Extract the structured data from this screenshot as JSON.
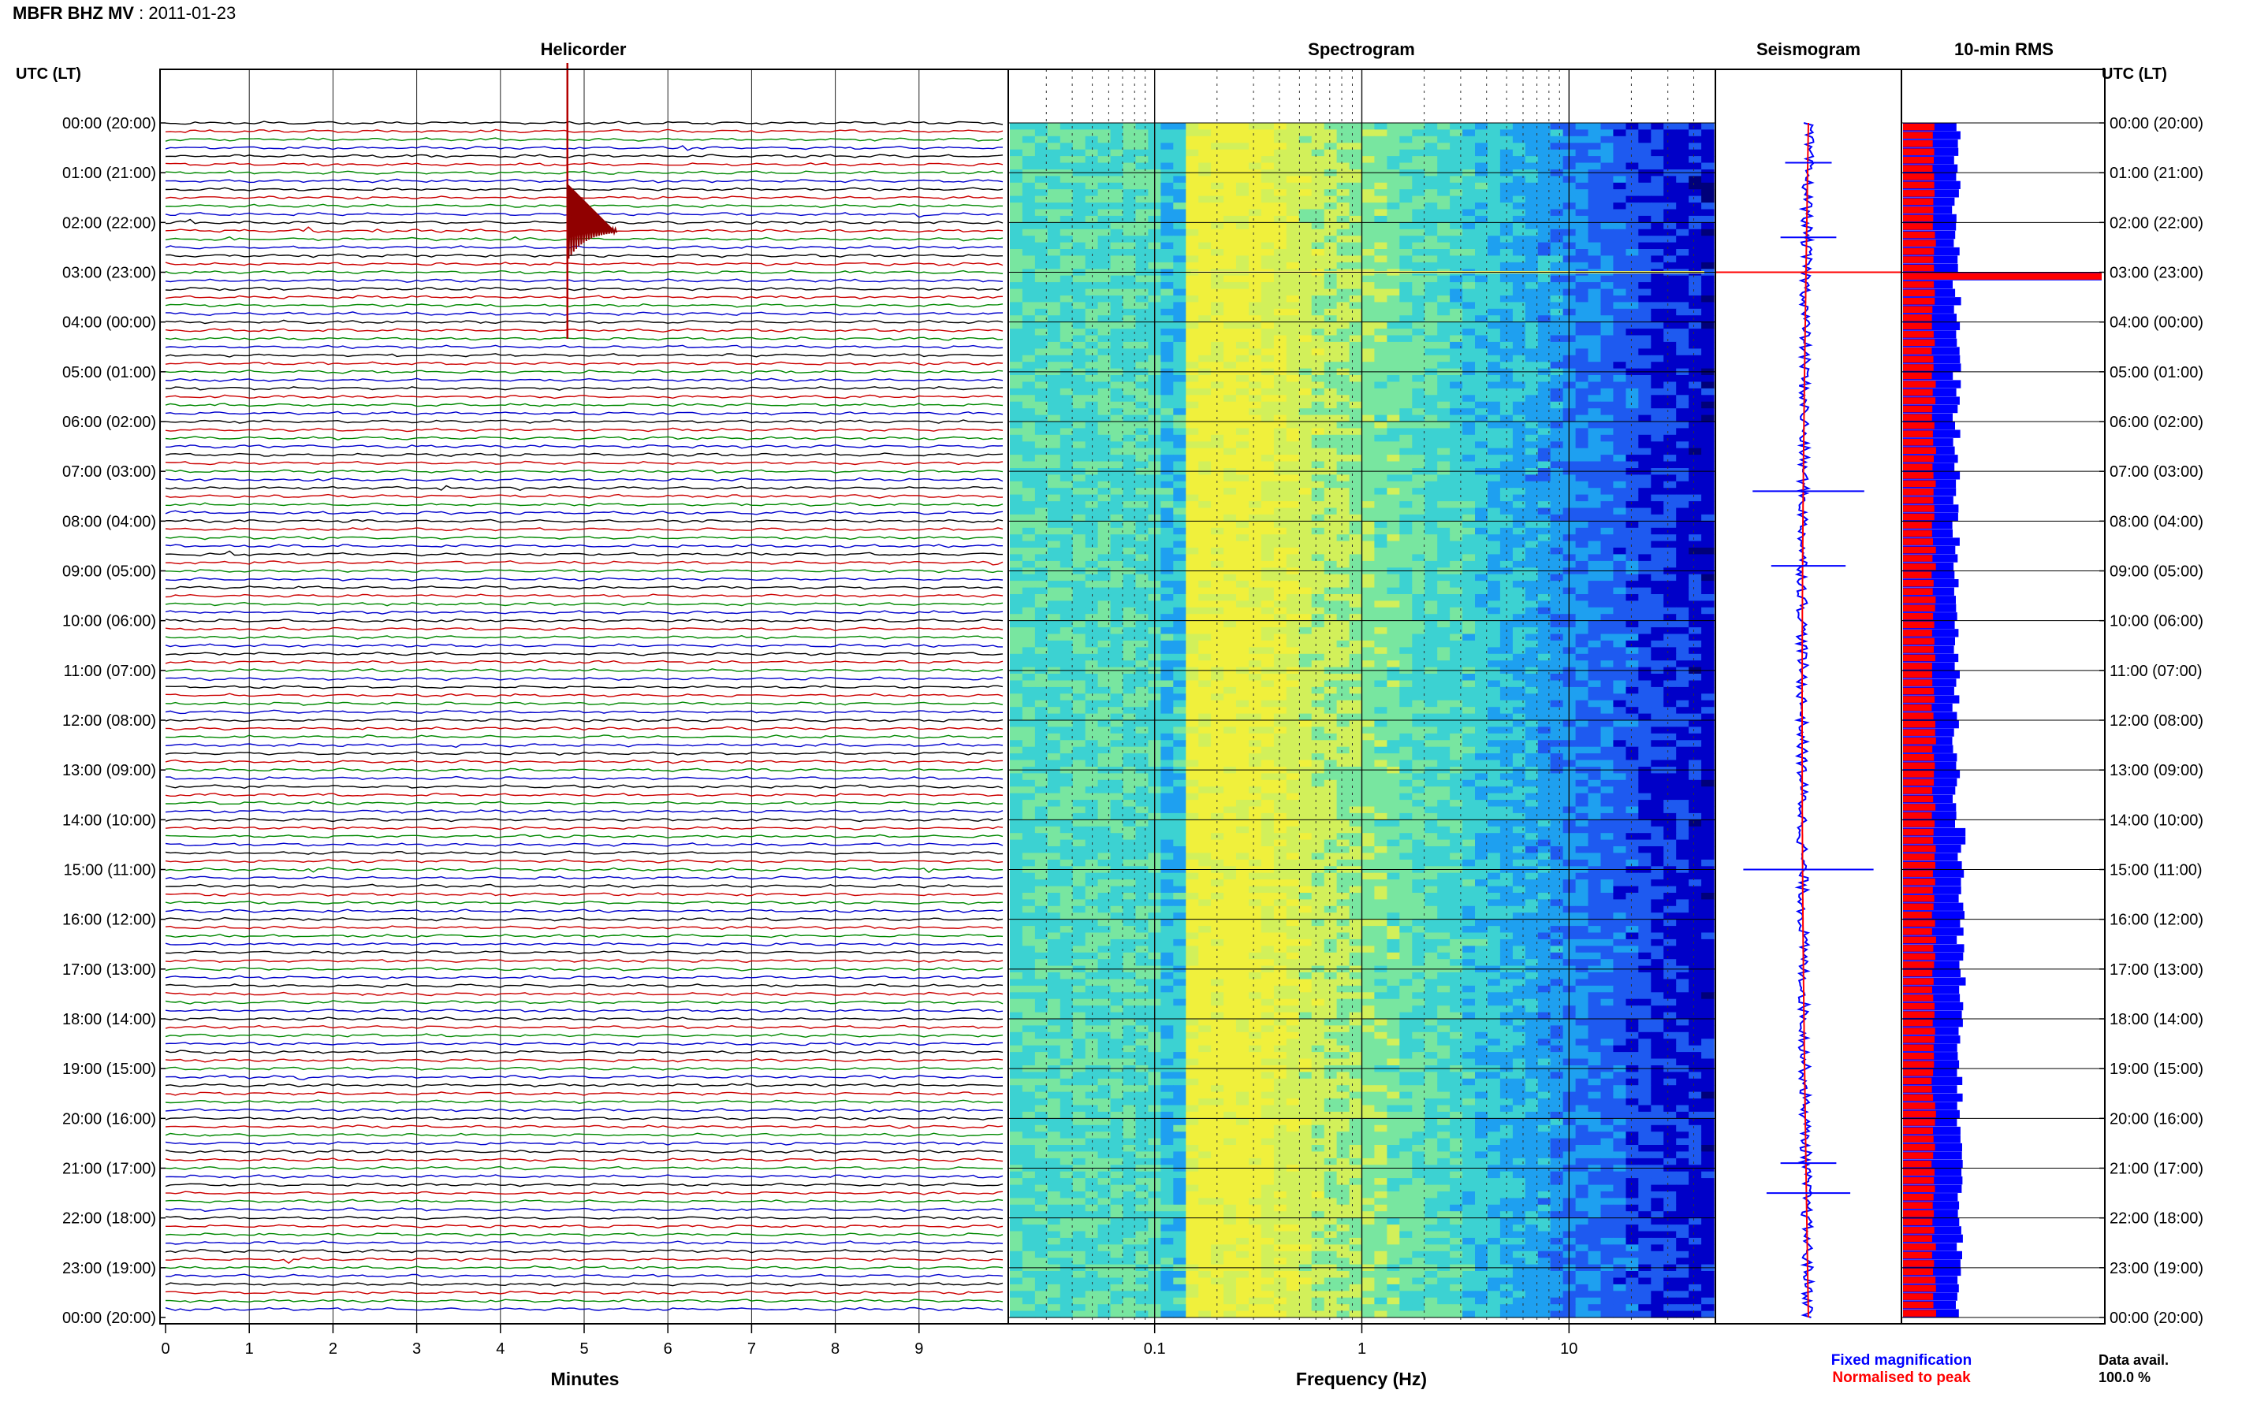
{
  "header": {
    "station": "MBFR BHZ MV",
    "date": "2011-01-23",
    "title_sep": " : "
  },
  "left_axis_title": "UTC (LT)",
  "right_axis_title": "UTC (LT)",
  "colors": {
    "trace_cycle": [
      "#000000",
      "#cc0000",
      "#008800",
      "#0000cc"
    ],
    "spectrogram_scale": [
      "#00007a",
      "#0000c8",
      "#1e5af0",
      "#1ea0f0",
      "#3cd2d2",
      "#78e6a0",
      "#d2f05a",
      "#f0f03c"
    ],
    "fixed_magnification": "#0000ff",
    "normalised_to_peak": "#ff0000"
  },
  "chart_data": [
    {
      "type": "line",
      "title": "Helicorder",
      "xlabel": "Minutes",
      "ylabel": "UTC (LT)",
      "x_ticks": [
        "0",
        "1",
        "2",
        "3",
        "4",
        "5",
        "6",
        "7",
        "8",
        "9"
      ],
      "xlim": [
        0,
        10
      ],
      "rows_per_hour": 6,
      "hours": 24,
      "y_tick_labels": [
        "00:00 (20:00)",
        "01:00 (21:00)",
        "02:00 (22:00)",
        "03:00 (23:00)",
        "04:00 (00:00)",
        "05:00 (01:00)",
        "06:00 (02:00)",
        "07:00 (03:00)",
        "08:00 (04:00)",
        "09:00 (05:00)",
        "10:00 (06:00)",
        "11:00 (07:00)",
        "12:00 (08:00)",
        "13:00 (09:00)",
        "14:00 (10:00)",
        "15:00 (11:00)",
        "16:00 (12:00)",
        "17:00 (13:00)",
        "18:00 (14:00)",
        "19:00 (15:00)",
        "20:00 (16:00)",
        "21:00 (17:00)",
        "22:00 (18:00)",
        "23:00 (19:00)",
        "00:00 (20:00)"
      ],
      "events": [
        {
          "row": 3,
          "minute": 6.2,
          "amp": 0.7
        },
        {
          "row": 12,
          "minute": 0.3,
          "amp": 0.8
        },
        {
          "row": 13,
          "minute": 2.5,
          "amp": 0.8
        },
        {
          "row": 13,
          "minute": 1.7,
          "amp": 0.6
        },
        {
          "row": 14,
          "minute": 0.7,
          "amp": 0.5
        },
        {
          "row": 14,
          "minute": 4.2,
          "amp": 0.4
        },
        {
          "row": 11,
          "minute": 9.0,
          "amp": 0.7
        },
        {
          "row": 10,
          "minute": 7.4,
          "amp": 0.4
        },
        {
          "row": 11,
          "minute": 5.4,
          "amp": 0.4
        },
        {
          "row": 13,
          "minute": 4.8,
          "amp": 6.0,
          "big": true
        },
        {
          "row": 44,
          "minute": 3.3,
          "amp": 0.5
        },
        {
          "row": 44,
          "minute": 4.2,
          "amp": 0.7
        },
        {
          "row": 47,
          "minute": 0.1,
          "amp": 0.8
        },
        {
          "row": 52,
          "minute": 0.8,
          "amp": 0.7
        },
        {
          "row": 53,
          "minute": 9.9,
          "amp": 0.5
        },
        {
          "row": 75,
          "minute": 3.5,
          "amp": 0.4
        },
        {
          "row": 90,
          "minute": 1.8,
          "amp": 0.8
        },
        {
          "row": 90,
          "minute": 9.1,
          "amp": 0.4
        },
        {
          "row": 105,
          "minute": 9.4,
          "amp": 0.6
        },
        {
          "row": 115,
          "minute": 1.6,
          "amp": 0.5
        },
        {
          "row": 117,
          "minute": 3.7,
          "amp": 0.6
        },
        {
          "row": 119,
          "minute": 8.5,
          "amp": 0.8
        },
        {
          "row": 121,
          "minute": 8.8,
          "amp": 0.8
        },
        {
          "row": 137,
          "minute": 1.5,
          "amp": 0.7
        },
        {
          "row": 140,
          "minute": 5.8,
          "amp": 0.5
        }
      ]
    },
    {
      "type": "heatmap",
      "title": "Spectrogram",
      "xlabel": "Frequency (Hz)",
      "x_scale": "log",
      "xlim": [
        0.02,
        50
      ],
      "x_ticks": [
        {
          "value": 0.1,
          "label": "0.1"
        },
        {
          "value": 1,
          "label": "1"
        },
        {
          "value": 10,
          "label": "10"
        }
      ],
      "peak_band_hz": [
        0.15,
        0.35
      ],
      "highlight_row_hour": 3.0
    },
    {
      "type": "line",
      "title": "Seismogram",
      "series": [
        {
          "name": "Fixed magnification",
          "color": "#0000ff"
        },
        {
          "name": "Normalised to peak",
          "color": "#ff0000"
        }
      ],
      "spikes": [
        {
          "hour": 0.8,
          "width": 0.25
        },
        {
          "hour": 2.3,
          "width": 0.3
        },
        {
          "hour": 3.0,
          "width": 0.6
        },
        {
          "hour": 7.4,
          "width": 0.6
        },
        {
          "hour": 8.9,
          "width": 0.4
        },
        {
          "hour": 15.0,
          "width": 0.7
        },
        {
          "hour": 20.9,
          "width": 0.3
        },
        {
          "hour": 21.5,
          "width": 0.45
        }
      ]
    },
    {
      "type": "bar",
      "title": "10-min RMS",
      "peak_hour": 3.0,
      "series": [
        {
          "name": "Fixed magnification",
          "color": "#0000ff"
        },
        {
          "name": "Normalised to peak",
          "color": "#ff0000"
        }
      ]
    }
  ],
  "legend": {
    "fixed": "Fixed magnification",
    "normalised": "Normalised to peak"
  },
  "data_availability": {
    "label": "Data avail.",
    "value": "100.0 %"
  }
}
